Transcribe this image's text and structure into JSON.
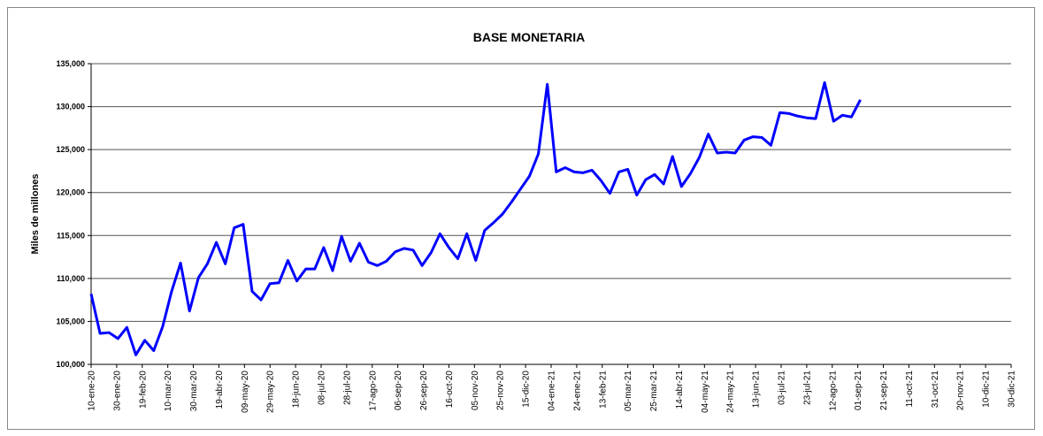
{
  "chart_data": {
    "type": "line",
    "title": "BASE MONETARIA",
    "y_label": "Miles de millones",
    "x": [
      "2020-01-10",
      "2020-01-17",
      "2020-01-24",
      "2020-01-31",
      "2020-02-07",
      "2020-02-14",
      "2020-02-21",
      "2020-02-28",
      "2020-03-06",
      "2020-03-13",
      "2020-03-20",
      "2020-03-27",
      "2020-04-03",
      "2020-04-10",
      "2020-04-17",
      "2020-04-24",
      "2020-05-01",
      "2020-05-08",
      "2020-05-15",
      "2020-05-22",
      "2020-05-29",
      "2020-06-05",
      "2020-06-12",
      "2020-06-19",
      "2020-06-26",
      "2020-07-03",
      "2020-07-10",
      "2020-07-17",
      "2020-07-24",
      "2020-07-31",
      "2020-08-07",
      "2020-08-14",
      "2020-08-21",
      "2020-08-28",
      "2020-09-04",
      "2020-09-11",
      "2020-09-18",
      "2020-09-25",
      "2020-10-02",
      "2020-10-09",
      "2020-10-16",
      "2020-10-23",
      "2020-10-30",
      "2020-11-06",
      "2020-11-13",
      "2020-11-20",
      "2020-11-27",
      "2020-12-04",
      "2020-12-11",
      "2020-12-18",
      "2020-12-25",
      "2021-01-01",
      "2021-01-08",
      "2021-01-15",
      "2021-01-22",
      "2021-01-29",
      "2021-02-05",
      "2021-02-12",
      "2021-02-19",
      "2021-02-26",
      "2021-03-05",
      "2021-03-12",
      "2021-03-19",
      "2021-03-26",
      "2021-04-02",
      "2021-04-09",
      "2021-04-16",
      "2021-04-23",
      "2021-04-30",
      "2021-05-07",
      "2021-05-14",
      "2021-05-21",
      "2021-05-28",
      "2021-06-04",
      "2021-06-11",
      "2021-06-18",
      "2021-06-25",
      "2021-07-02",
      "2021-07-09",
      "2021-07-16",
      "2021-07-23",
      "2021-07-30",
      "2021-08-06",
      "2021-08-13",
      "2021-08-20",
      "2021-08-27",
      "2021-09-03"
    ],
    "series": [
      {
        "name": "Base monetaria",
        "color": "#0000ff",
        "values": [
          108200,
          103600,
          103700,
          103000,
          104300,
          101100,
          102800,
          101600,
          104400,
          108500,
          111800,
          106200,
          110100,
          111700,
          114200,
          111700,
          115900,
          116300,
          108500,
          107500,
          109400,
          109500,
          112100,
          109700,
          111100,
          111100,
          113600,
          110900,
          114900,
          112000,
          114100,
          111900,
          111500,
          112000,
          113100,
          113500,
          113300,
          111500,
          113000,
          115200,
          113600,
          112300,
          115200,
          112100,
          115600,
          116500,
          117500,
          118900,
          120400,
          121900,
          124500,
          132600,
          122400,
          122900,
          122400,
          122300,
          122600,
          121400,
          119900,
          122400,
          122700,
          119700,
          121500,
          122100,
          121000,
          124200,
          120700,
          122200,
          124100,
          126800,
          124600,
          124700,
          124600,
          126100,
          126500,
          126400,
          125500,
          129300,
          129200,
          128900,
          128700,
          128600,
          132800,
          128300,
          129000,
          128800,
          130800
        ]
      }
    ],
    "xlim": [
      "2020-01-10",
      "2021-12-30"
    ],
    "xticks": [
      {
        "value": "2020-01-10",
        "label": "10-ene-20"
      },
      {
        "value": "2020-01-30",
        "label": "30-ene-20"
      },
      {
        "value": "2020-02-19",
        "label": "19-feb-20"
      },
      {
        "value": "2020-03-10",
        "label": "10-mar-20"
      },
      {
        "value": "2020-03-30",
        "label": "30-mar-20"
      },
      {
        "value": "2020-04-19",
        "label": "19-abr-20"
      },
      {
        "value": "2020-05-09",
        "label": "09-may-20"
      },
      {
        "value": "2020-05-29",
        "label": "29-may-20"
      },
      {
        "value": "2020-06-18",
        "label": "18-jun-20"
      },
      {
        "value": "2020-07-08",
        "label": "08-jul-20"
      },
      {
        "value": "2020-07-28",
        "label": "28-jul-20"
      },
      {
        "value": "2020-08-17",
        "label": "17-ago-20"
      },
      {
        "value": "2020-09-06",
        "label": "06-sep-20"
      },
      {
        "value": "2020-09-26",
        "label": "26-sep-20"
      },
      {
        "value": "2020-10-16",
        "label": "16-oct-20"
      },
      {
        "value": "2020-11-05",
        "label": "05-nov-20"
      },
      {
        "value": "2020-11-25",
        "label": "25-nov-20"
      },
      {
        "value": "2020-12-15",
        "label": "15-dic-20"
      },
      {
        "value": "2021-01-04",
        "label": "04-ene-21"
      },
      {
        "value": "2021-01-24",
        "label": "24-ene-21"
      },
      {
        "value": "2021-02-13",
        "label": "13-feb-21"
      },
      {
        "value": "2021-03-05",
        "label": "05-mar-21"
      },
      {
        "value": "2021-03-25",
        "label": "25-mar-21"
      },
      {
        "value": "2021-04-14",
        "label": "14-abr-21"
      },
      {
        "value": "2021-05-04",
        "label": "04-may-21"
      },
      {
        "value": "2021-05-24",
        "label": "24-may-21"
      },
      {
        "value": "2021-06-13",
        "label": "13-jun-21"
      },
      {
        "value": "2021-07-03",
        "label": "03-jul-21"
      },
      {
        "value": "2021-07-23",
        "label": "23-jul-21"
      },
      {
        "value": "2021-08-12",
        "label": "12-ago-21"
      },
      {
        "value": "2021-09-01",
        "label": "01-sep-21"
      },
      {
        "value": "2021-09-21",
        "label": "21-sep-21"
      },
      {
        "value": "2021-10-11",
        "label": "11-oct-21"
      },
      {
        "value": "2021-10-31",
        "label": "31-oct-21"
      },
      {
        "value": "2021-11-20",
        "label": "20-nov-21"
      },
      {
        "value": "2021-12-10",
        "label": "10-dic-21"
      },
      {
        "value": "2021-12-30",
        "label": "30-dic-21"
      }
    ],
    "ylim": [
      100000,
      135000
    ],
    "yticks": [
      {
        "value": 100000,
        "label": "100,000"
      },
      {
        "value": 105000,
        "label": "105,000"
      },
      {
        "value": 110000,
        "label": "110,000"
      },
      {
        "value": 115000,
        "label": "115,000"
      },
      {
        "value": 120000,
        "label": "120,000"
      },
      {
        "value": 125000,
        "label": "125,000"
      },
      {
        "value": 130000,
        "label": "130,000"
      },
      {
        "value": 135000,
        "label": "135,000"
      }
    ],
    "grid": true
  }
}
